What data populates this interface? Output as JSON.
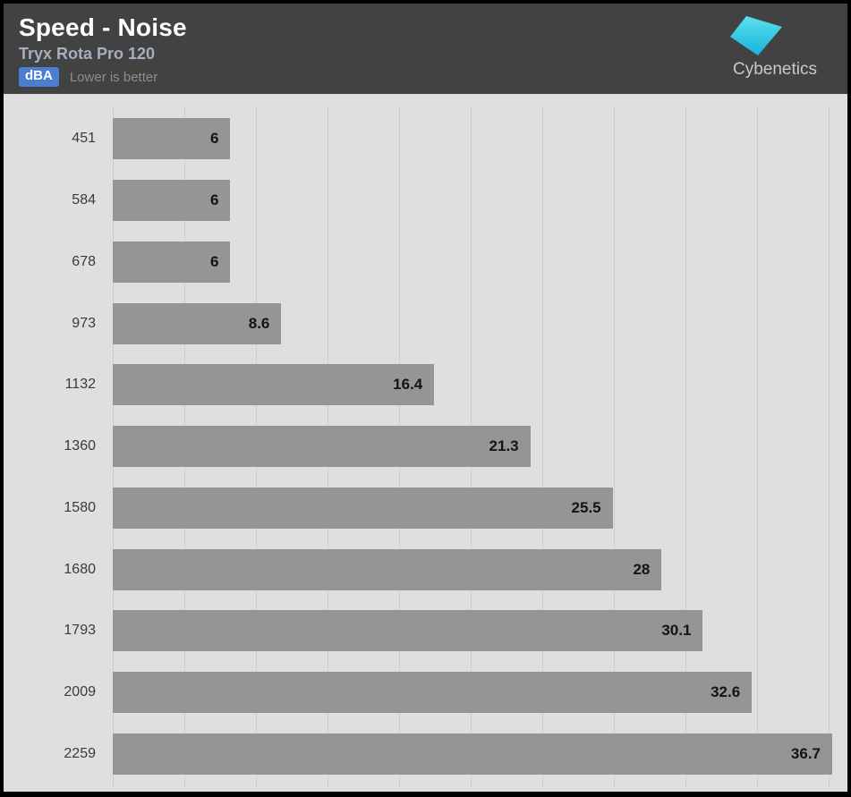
{
  "header": {
    "title": "Speed - Noise",
    "subtitle": "Tryx Rota Pro 120",
    "unit_badge": "dBA",
    "note": "Lower is better",
    "logo_text": "Cybenetics"
  },
  "colors": {
    "header_bg": "#424242",
    "chart_bg": "#dfdfdf",
    "gridline": "#cdcdcd",
    "bar": "#959595",
    "badge_bg": "#4b7ed1",
    "subtitle_text": "#a5afbd",
    "note_text": "#8d8d8d",
    "logo_gradient_top": "#5fe0ec",
    "logo_gradient_mid": "#3bcce6",
    "logo_gradient_bottom": "#1bb2d8",
    "logo_text_color": "#c9c9c9"
  },
  "chart_data": {
    "type": "bar",
    "orientation": "horizontal",
    "title": "Speed - Noise",
    "subtitle": "Tryx Rota Pro 120",
    "unit": "dBA",
    "note": "Lower is better",
    "xlabel": "",
    "ylabel": "",
    "categories": [
      "451",
      "584",
      "678",
      "973",
      "1132",
      "1360",
      "1580",
      "1680",
      "1793",
      "2009",
      "2259"
    ],
    "values": [
      6,
      6,
      6,
      8.6,
      16.4,
      21.3,
      25.5,
      28,
      30.1,
      32.6,
      36.7
    ],
    "labels": [
      "6",
      "6",
      "6",
      "8.6",
      "16.4",
      "21.3",
      "25.5",
      "28",
      "30.1",
      "32.6",
      "36.7"
    ],
    "xlim": [
      0,
      36.7
    ],
    "grid": true,
    "gridline_count": 11,
    "legend": false
  }
}
